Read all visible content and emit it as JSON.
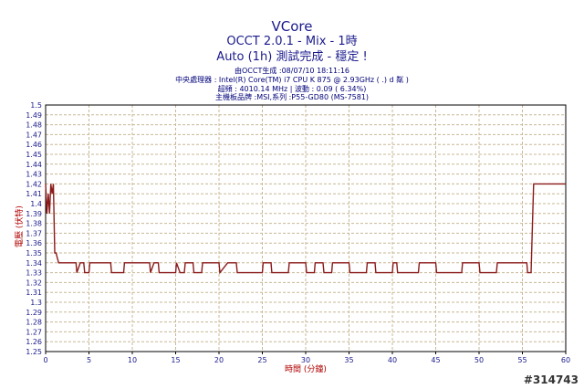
{
  "header": {
    "line1": "VCore",
    "line2": "OCCT 2.0.1 - Mix - 1時",
    "line3": "Auto (1h) 測試完成 - 穩定 !"
  },
  "info": {
    "generated": "由OCCT生成 :08/07/10 18:11:16",
    "cpu": "中央處理器 : Intel(R) Core(TM) i7 CPU K 875 @ 2.93GHz (  .) d    粼   )",
    "freq": "超頻 : 4010.14 MHz | 波動 : 0.09 ( 6.34%)",
    "board": "主機板品牌 :MSI,系列 :P55-GD80 (MS-7581)"
  },
  "watermark": "#314743",
  "colors": {
    "line": "#8b1a1a",
    "grid": "#c8b896",
    "axis": "#000000",
    "text": "#1a1a8c"
  },
  "chart_data": {
    "type": "line",
    "title": "VCore",
    "xlabel": "時間 (分鐘)",
    "ylabel": "電壓 (伏特)",
    "xlim": [
      0,
      60
    ],
    "ylim": [
      1.25,
      1.5
    ],
    "grid": true,
    "xticks": [
      "0",
      "5",
      "10",
      "15",
      "20",
      "25",
      "30",
      "35",
      "40",
      "45",
      "50",
      "55",
      "60"
    ],
    "yticks": [
      "1.25",
      "1.26",
      "1.27",
      "1.28",
      "1.29",
      "1.3",
      "1.31",
      "1.32",
      "1.33",
      "1.34",
      "1.35",
      "1.36",
      "1.37",
      "1.38",
      "1.39",
      "1.4",
      "1.41",
      "1.42",
      "1.43",
      "1.44",
      "1.45",
      "1.46",
      "1.47",
      "1.48",
      "1.49",
      "1.5"
    ],
    "series": [
      {
        "x": [
          0,
          0.15,
          0.3,
          0.45,
          0.6,
          0.75,
          0.9,
          1.05,
          1.2,
          1.35,
          1.5,
          1.7,
          2.0,
          2.5,
          3.0,
          3.5,
          3.6,
          4.0,
          4.4,
          4.5,
          5.0,
          5.1,
          5.5,
          6.5,
          7.5,
          7.6,
          9.0,
          9.1,
          10.0,
          11.0,
          12.0,
          12.1,
          12.5,
          13.0,
          13.1,
          15.0,
          15.1,
          15.5,
          16.0,
          16.1,
          17.0,
          17.1,
          18.0,
          18.1,
          20.0,
          20.1,
          21.0,
          22.0,
          22.1,
          25.0,
          25.1,
          26.0,
          26.1,
          28.0,
          28.1,
          30.0,
          30.1,
          31.0,
          31.1,
          32.0,
          32.1,
          33.0,
          33.1,
          34.0,
          35.0,
          35.1,
          37.0,
          37.1,
          38.0,
          38.1,
          40.0,
          40.1,
          40.5,
          40.6,
          43.0,
          43.1,
          45.0,
          45.1,
          48.0,
          48.1,
          50.0,
          50.1,
          52.0,
          52.1,
          55.5,
          55.6,
          56.0,
          56.3,
          60
        ],
        "y": [
          1.42,
          1.39,
          1.41,
          1.39,
          1.42,
          1.41,
          1.42,
          1.35,
          1.35,
          1.345,
          1.34,
          1.34,
          1.34,
          1.34,
          1.34,
          1.34,
          1.33,
          1.34,
          1.34,
          1.33,
          1.33,
          1.34,
          1.34,
          1.34,
          1.34,
          1.33,
          1.33,
          1.34,
          1.34,
          1.34,
          1.34,
          1.33,
          1.34,
          1.34,
          1.33,
          1.33,
          1.34,
          1.33,
          1.33,
          1.34,
          1.34,
          1.33,
          1.33,
          1.34,
          1.34,
          1.33,
          1.34,
          1.34,
          1.33,
          1.33,
          1.34,
          1.34,
          1.33,
          1.33,
          1.34,
          1.34,
          1.33,
          1.33,
          1.34,
          1.34,
          1.33,
          1.33,
          1.34,
          1.34,
          1.34,
          1.33,
          1.33,
          1.34,
          1.34,
          1.33,
          1.33,
          1.34,
          1.34,
          1.33,
          1.33,
          1.34,
          1.34,
          1.33,
          1.33,
          1.34,
          1.34,
          1.33,
          1.33,
          1.34,
          1.34,
          1.33,
          1.33,
          1.42,
          1.42
        ]
      }
    ]
  }
}
